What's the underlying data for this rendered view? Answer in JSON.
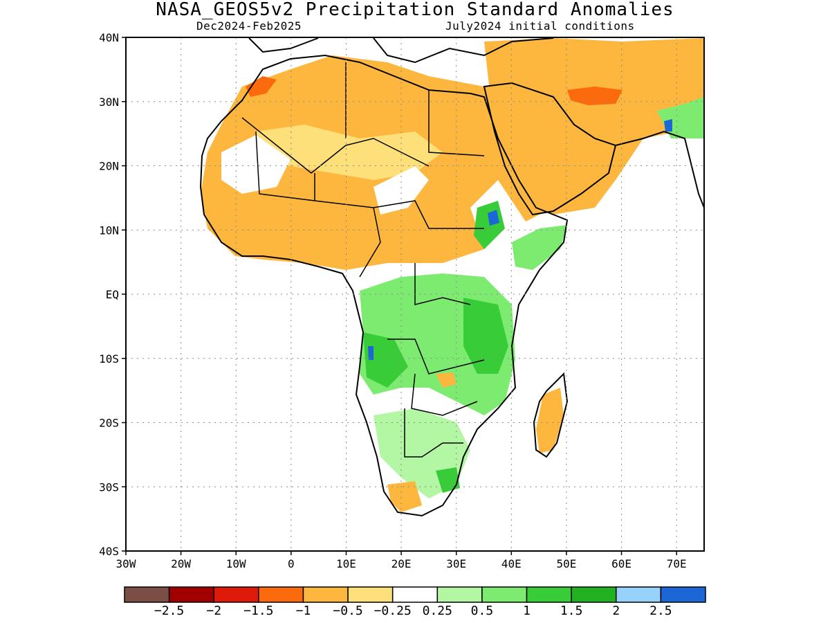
{
  "title": "NASA_GEOS5v2 Precipitation Standard Anomalies",
  "subtitle_left": "Dec2024-Feb2025",
  "subtitle_right": "July2024 initial conditions",
  "map": {
    "lon_range": [
      -30,
      75
    ],
    "lat_range": [
      -40,
      40
    ],
    "lat_ticks": [
      {
        "value": 40,
        "label": "40N"
      },
      {
        "value": 30,
        "label": "30N"
      },
      {
        "value": 20,
        "label": "20N"
      },
      {
        "value": 10,
        "label": "10N"
      },
      {
        "value": 0,
        "label": "EQ"
      },
      {
        "value": -10,
        "label": "10S"
      },
      {
        "value": -20,
        "label": "20S"
      },
      {
        "value": -30,
        "label": "30S"
      },
      {
        "value": -40,
        "label": "40S"
      }
    ],
    "lon_ticks": [
      {
        "value": -30,
        "label": "30W"
      },
      {
        "value": -20,
        "label": "20W"
      },
      {
        "value": -10,
        "label": "10W"
      },
      {
        "value": 0,
        "label": "0"
      },
      {
        "value": 10,
        "label": "10E"
      },
      {
        "value": 20,
        "label": "20E"
      },
      {
        "value": 30,
        "label": "30E"
      },
      {
        "value": 40,
        "label": "40E"
      },
      {
        "value": 50,
        "label": "50E"
      },
      {
        "value": 60,
        "label": "60E"
      },
      {
        "value": 70,
        "label": "70E"
      }
    ],
    "grid": "dotted",
    "colors": {
      "dry_strong": "#fdb73e",
      "dry_mild": "#fde07a",
      "dry_extreme": "#fb6a0c",
      "wet_light": "#b3f7a5",
      "wet_mid": "#7ceb6f",
      "wet_strong": "#38cc38",
      "wet_very": "#20b020",
      "wet_blue": "#1c66d6"
    }
  },
  "colorbar": {
    "colors": [
      "#7a4e44",
      "#a20000",
      "#de1a08",
      "#fb6a0c",
      "#fdb73e",
      "#fde07a",
      "#ffffff",
      "#b3f7a5",
      "#7ceb6f",
      "#38cc38",
      "#20b020",
      "#96d2fa",
      "#1c66d6"
    ],
    "labels": [
      "-2.5",
      "-2",
      "-1.5",
      "-1",
      "-0.5",
      "-0.25",
      "0.25",
      "0.5",
      "1",
      "1.5",
      "2",
      "2.5"
    ]
  }
}
